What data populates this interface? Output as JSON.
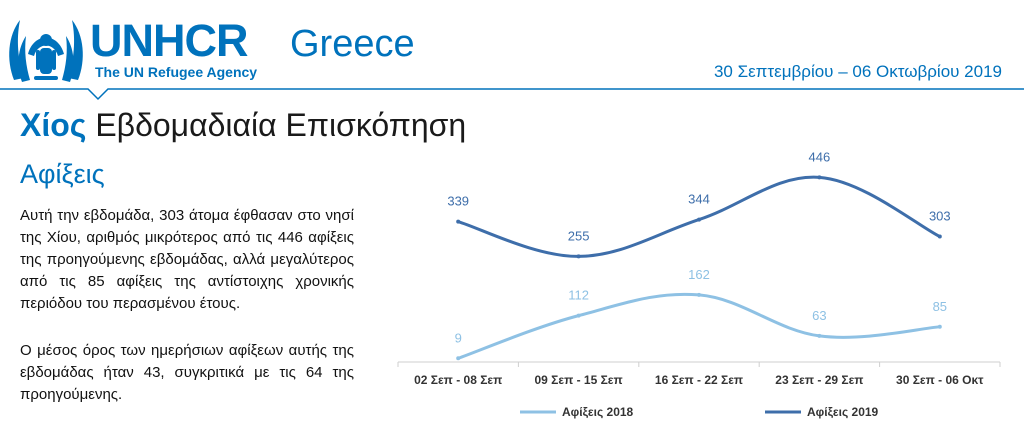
{
  "header": {
    "brand": "UNHCR",
    "tagline": "The UN Refugee Agency",
    "country": "Greece",
    "date_range": "30 Σεπτεμβρίου – 06 Οκτωβρίου 2019"
  },
  "title": {
    "island": "Χίος",
    "rest": "Εβδομαδιαία Επισκόπηση"
  },
  "section": {
    "heading": "Αφίξεις",
    "paragraphs": [
      "Αυτή την εβδομάδα, 303 άτομα έφθασαν στο νησί της Χίου, αριθμός μικρότερος από τις 446 αφίξεις της προηγούμενης εβδομάδας, αλλά μεγαλύτερος από τις 85 αφίξεις της αντίστοιχης χρονικής περιόδου του περασμένου έτους.",
      "Ο μέσος όρος των ημερήσιων αφίξεων αυτής της εβδομάδας ήταν 43, συγκριτικά με τις 64 της προηγούμενης."
    ]
  },
  "colors": {
    "brand": "#0072BC",
    "series_2018": "#8EC1E4",
    "series_2019": "#3E6EAA"
  },
  "chart_data": {
    "type": "line",
    "categories": [
      "02 Σεπ - 08 Σεπ",
      "09 Σεπ - 15 Σεπ",
      "16 Σεπ - 22 Σεπ",
      "23 Σεπ - 29 Σεπ",
      "30 Σεπ - 06 Οκτ"
    ],
    "series": [
      {
        "name": "Αφίξεις 2018",
        "values": [
          9,
          112,
          162,
          63,
          85
        ]
      },
      {
        "name": "Αφίξεις 2019",
        "values": [
          339,
          255,
          344,
          446,
          303
        ]
      }
    ],
    "ylim": [
      0,
      500
    ],
    "grid": false,
    "legend": "bottom",
    "data_labels": true
  }
}
